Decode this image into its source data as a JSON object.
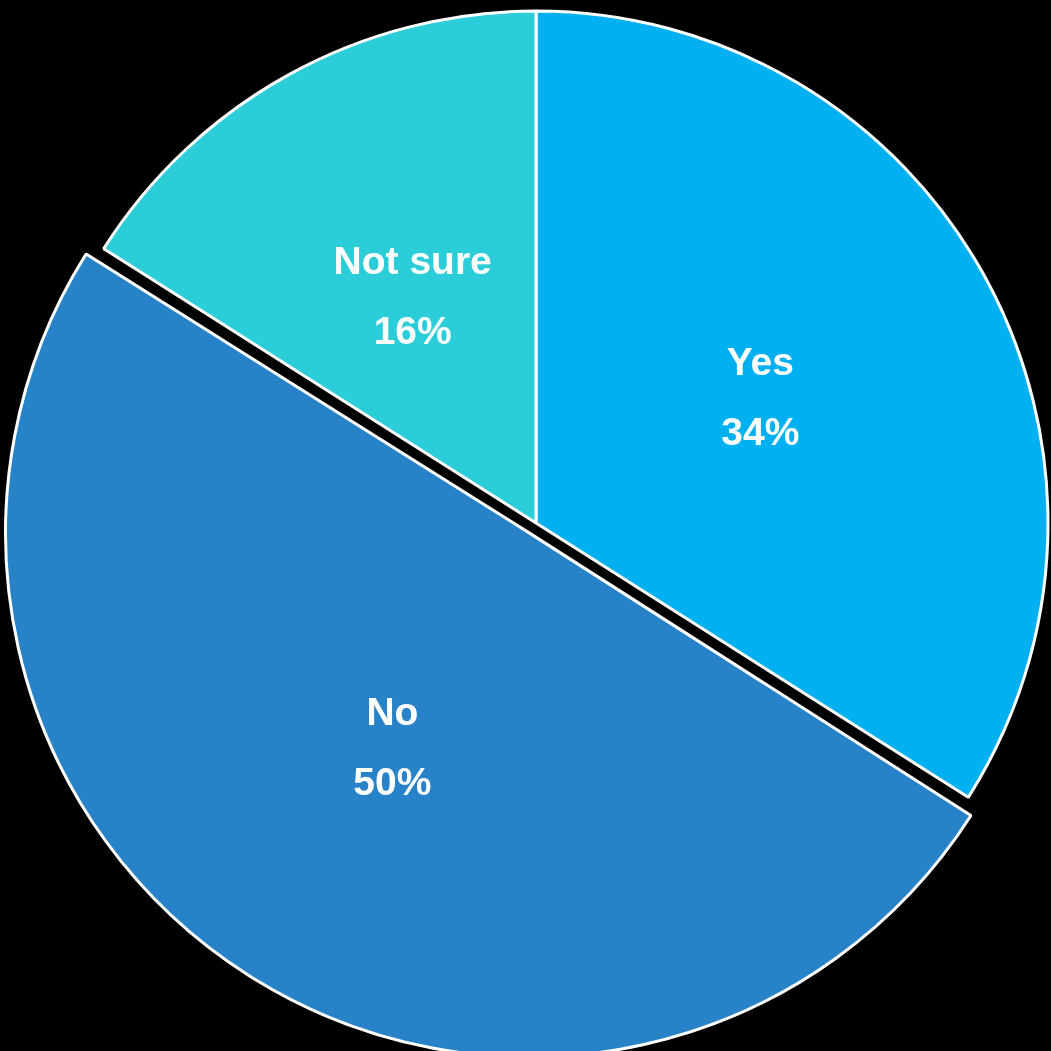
{
  "chart_data": {
    "type": "pie",
    "categories": [
      "Yes",
      "No",
      "Not sure"
    ],
    "values": [
      34,
      50,
      16
    ],
    "colors": [
      "#00b0f0",
      "#2882c8",
      "#2acdd8"
    ],
    "value_labels": [
      "34%",
      "50%",
      "16%"
    ]
  }
}
